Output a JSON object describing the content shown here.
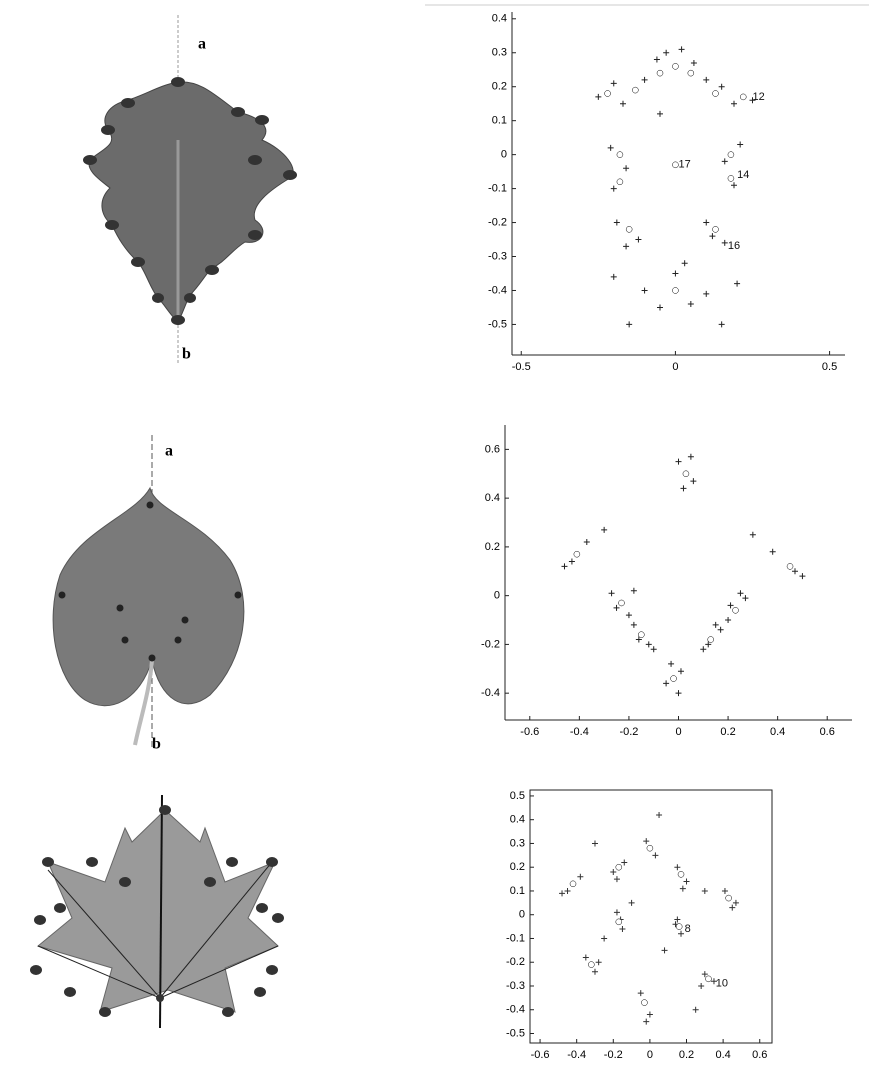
{
  "leaf_labels": [
    {
      "top": "a",
      "bottom": "b"
    },
    {
      "top": "a",
      "bottom": "b"
    }
  ],
  "chart_data": [
    {
      "type": "scatter",
      "xlim": [
        -0.53,
        0.55
      ],
      "ylim": [
        -0.59,
        0.42
      ],
      "xticks": [
        -0.5,
        0,
        0.5
      ],
      "yticks": [
        0.4,
        0.3,
        0.2,
        0.1,
        0,
        -0.1,
        -0.2,
        -0.3,
        -0.4,
        -0.5
      ],
      "box": false,
      "series": [
        {
          "color": "#222",
          "marker": "plus",
          "x": [
            -0.25,
            -0.2,
            -0.17,
            -0.1,
            -0.06,
            -0.03,
            0.02,
            0.06,
            0.1,
            0.15,
            0.19,
            0.25,
            -0.21,
            -0.16,
            -0.2,
            0.16,
            0.21,
            0.19,
            -0.19,
            -0.12,
            -0.16,
            0.1,
            0.16,
            0.12,
            -0.2,
            -0.1,
            0,
            0.1,
            0.2,
            -0.05,
            0.05,
            -0.15,
            0.15,
            0.03,
            -0.05
          ],
          "values": [
            0.17,
            0.21,
            0.15,
            0.22,
            0.28,
            0.3,
            0.31,
            0.27,
            0.22,
            0.2,
            0.15,
            0.16,
            0.02,
            -0.04,
            -0.1,
            -0.02,
            0.03,
            -0.09,
            -0.2,
            -0.25,
            -0.27,
            -0.2,
            -0.26,
            -0.24,
            -0.36,
            -0.4,
            -0.35,
            -0.41,
            -0.38,
            -0.45,
            -0.44,
            -0.5,
            -0.5,
            -0.32,
            0.12
          ]
        },
        {
          "color": "#fff",
          "marker": "dot",
          "x": [
            -0.22,
            -0.13,
            -0.05,
            0,
            0.05,
            0.13,
            0.22,
            -0.18,
            0.18,
            -0.15,
            0.13,
            -0.18,
            0.18,
            0,
            0
          ],
          "values": [
            0.18,
            0.19,
            0.24,
            0.26,
            0.24,
            0.18,
            0.17,
            0,
            0,
            -0.22,
            -0.22,
            -0.08,
            -0.07,
            -0.03,
            -0.4
          ]
        }
      ],
      "annotations": [
        {
          "text": "12",
          "x": 0.25,
          "y": 0.17
        },
        {
          "text": "14",
          "x": 0.2,
          "y": -0.06
        },
        {
          "text": "16",
          "x": 0.17,
          "y": -0.27
        },
        {
          "text": "17",
          "x": 0.01,
          "y": -0.03
        }
      ]
    },
    {
      "type": "scatter",
      "xlim": [
        -0.7,
        0.7
      ],
      "ylim": [
        -0.51,
        0.7
      ],
      "xticks": [
        -0.6,
        -0.4,
        -0.2,
        0,
        0.2,
        0.4,
        0.6
      ],
      "yticks": [
        0.6,
        0.4,
        0.2,
        0,
        -0.2,
        -0.4
      ],
      "box": false,
      "series": [
        {
          "color": "#222",
          "marker": "plus",
          "x": [
            0,
            0.06,
            0.02,
            0.05,
            -0.46,
            -0.37,
            -0.3,
            -0.43,
            0.38,
            0.5,
            0.3,
            0.47,
            -0.27,
            -0.2,
            -0.25,
            -0.18,
            0.27,
            0.2,
            0.25,
            0.21,
            -0.18,
            -0.12,
            -0.16,
            -0.1,
            0.1,
            0.17,
            0.12,
            0.15,
            -0.03,
            0,
            -0.05,
            0.01
          ],
          "values": [
            0.55,
            0.47,
            0.44,
            0.57,
            0.12,
            0.22,
            0.27,
            0.14,
            0.18,
            0.08,
            0.25,
            0.1,
            0.01,
            -0.08,
            -0.05,
            0.02,
            -0.01,
            -0.1,
            0.01,
            -0.04,
            -0.12,
            -0.2,
            -0.18,
            -0.22,
            -0.22,
            -0.14,
            -0.2,
            -0.12,
            -0.28,
            -0.4,
            -0.36,
            -0.31
          ]
        },
        {
          "color": "#fff",
          "marker": "dot",
          "x": [
            0.03,
            -0.41,
            0.45,
            -0.23,
            0.23,
            -0.15,
            0.13,
            -0.02
          ],
          "values": [
            0.5,
            0.17,
            0.12,
            -0.03,
            -0.06,
            -0.16,
            -0.18,
            -0.34
          ]
        }
      ],
      "annotations": []
    },
    {
      "type": "scatter",
      "xlim": [
        -0.655,
        0.667
      ],
      "ylim": [
        -0.54,
        0.525
      ],
      "xticks": [
        -0.6,
        -0.4,
        -0.2,
        0,
        0.2,
        0.4,
        0.6
      ],
      "yticks": [
        0.5,
        0.4,
        0.3,
        0.2,
        0.1,
        0,
        -0.1,
        -0.2,
        -0.3,
        -0.4,
        -0.5
      ],
      "box": true,
      "series": [
        {
          "color": "#333",
          "marker": "plus",
          "x": [
            -0.02,
            0.03,
            0.05,
            -0.2,
            -0.14,
            -0.18,
            0.15,
            0.2,
            0.18,
            -0.45,
            -0.38,
            -0.48,
            0.45,
            0.41,
            0.47,
            -0.18,
            -0.15,
            -0.16,
            0.15,
            0.17,
            0.14,
            -0.35,
            -0.3,
            -0.28,
            0.3,
            0.35,
            0.28,
            -0.05,
            0,
            -0.02,
            -0.1,
            0.08,
            -0.25,
            0.3,
            -0.3,
            0.25
          ],
          "values": [
            0.31,
            0.25,
            0.42,
            0.18,
            0.22,
            0.15,
            0.2,
            0.14,
            0.11,
            0.1,
            0.16,
            0.09,
            0.03,
            0.1,
            0.05,
            0.01,
            -0.06,
            -0.02,
            -0.02,
            -0.08,
            -0.04,
            -0.18,
            -0.24,
            -0.2,
            -0.25,
            -0.28,
            -0.3,
            -0.33,
            -0.42,
            -0.45,
            0.05,
            -0.15,
            -0.1,
            0.1,
            0.3,
            -0.4
          ]
        },
        {
          "color": "#fff",
          "marker": "dot",
          "x": [
            0,
            -0.17,
            0.17,
            -0.42,
            0.43,
            -0.17,
            0.16,
            -0.32,
            0.32,
            -0.03
          ],
          "values": [
            0.28,
            0.2,
            0.17,
            0.13,
            0.07,
            -0.03,
            -0.05,
            -0.21,
            -0.27,
            -0.37
          ]
        }
      ],
      "annotations": [
        {
          "text": "8",
          "x": 0.19,
          "y": -0.06
        },
        {
          "text": "10",
          "x": 0.36,
          "y": -0.29
        }
      ]
    }
  ]
}
